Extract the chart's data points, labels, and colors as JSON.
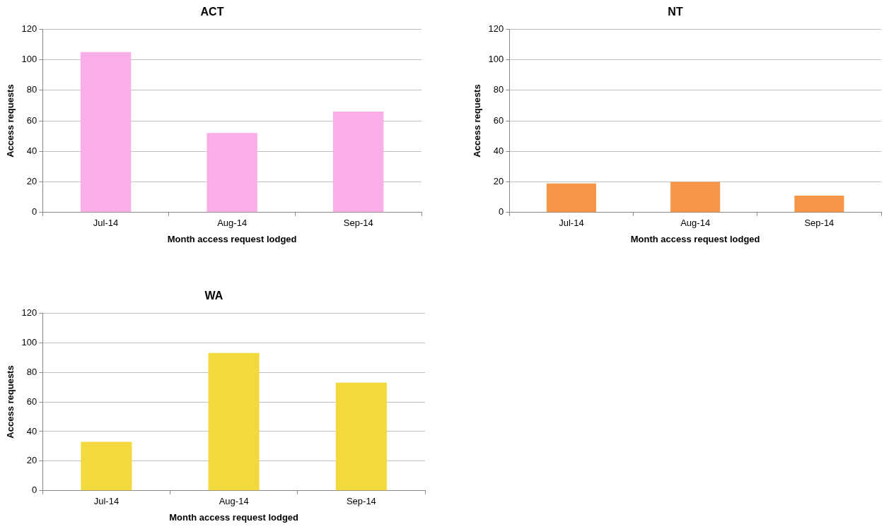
{
  "chart_data": [
    {
      "type": "bar",
      "title": "ACT",
      "xlabel": "Month access request lodged",
      "ylabel": "Access requests",
      "categories": [
        "Jul-14",
        "Aug-14",
        "Sep-14"
      ],
      "values": [
        105,
        52,
        66
      ],
      "color": "#f9aee8",
      "ylim": [
        0,
        120
      ],
      "yticks": [
        0,
        20,
        40,
        60,
        80,
        100,
        120
      ],
      "grid": "y"
    },
    {
      "type": "bar",
      "title": "NT",
      "xlabel": "Month access request lodged",
      "ylabel": "Access requests",
      "categories": [
        "Jul-14",
        "Aug-14",
        "Sep-14"
      ],
      "values": [
        19,
        20,
        11
      ],
      "color": "#f79646",
      "ylim": [
        0,
        120
      ],
      "yticks": [
        0,
        20,
        40,
        60,
        80,
        100,
        120
      ],
      "grid": "y"
    },
    {
      "type": "bar",
      "title": "WA",
      "xlabel": "Month access request lodged",
      "ylabel": "Access requests",
      "categories": [
        "Jul-14",
        "Aug-14",
        "Sep-14"
      ],
      "values": [
        33,
        93,
        73
      ],
      "color": "#f2d93e",
      "ylim": [
        0,
        120
      ],
      "yticks": [
        0,
        20,
        40,
        60,
        80,
        100,
        120
      ],
      "grid": "y"
    }
  ]
}
